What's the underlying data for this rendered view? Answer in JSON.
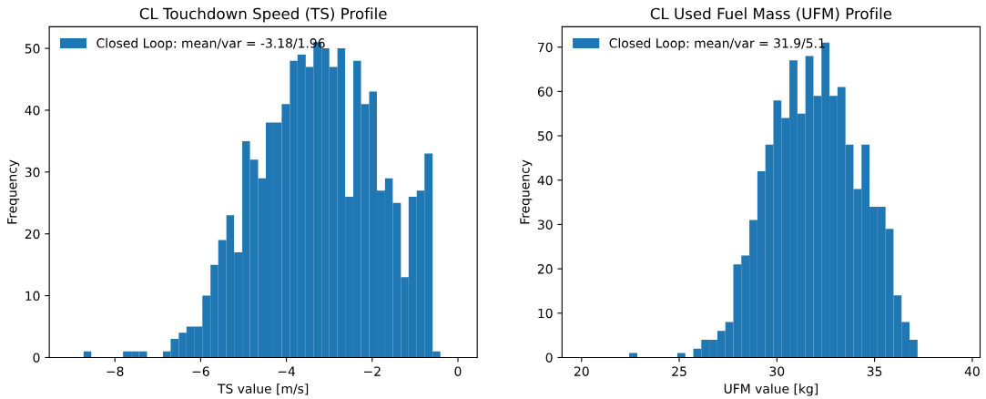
{
  "chart_data": [
    {
      "type": "histogram",
      "title": "CL Touchdown Speed (TS) Profile",
      "xlabel": "TS value [m/s]",
      "ylabel": "Frequency",
      "bins": [
        -8.73,
        -8.55,
        -8.36,
        -8.18,
        -7.99,
        -7.81,
        -7.62,
        -7.44,
        -7.25,
        -7.07,
        -6.88,
        -6.7,
        -6.51,
        -6.33,
        -6.14,
        -5.96,
        -5.77,
        -5.59,
        -5.4,
        -5.22,
        -5.03,
        -4.85,
        -4.66,
        -4.48,
        -4.29,
        -4.11,
        -3.92,
        -3.74,
        -3.55,
        -3.37,
        -3.18,
        -3.0,
        -2.81,
        -2.63,
        -2.44,
        -2.26,
        -2.07,
        -1.89,
        -1.7,
        -1.52,
        -1.33,
        -1.15,
        -0.96,
        -0.78,
        -0.59,
        -0.41
      ],
      "series": [
        {
          "name": "Closed Loop: mean/var = -3.18/1.96",
          "color": "#1f77b4",
          "values": [
            1,
            0,
            0,
            0,
            0,
            1,
            1,
            1,
            0,
            0,
            1,
            3,
            4,
            5,
            5,
            10,
            15,
            19,
            23,
            17,
            35,
            32,
            29,
            38,
            38,
            41,
            48,
            49,
            47,
            51,
            50,
            47,
            50,
            26,
            48,
            41,
            43,
            27,
            29,
            25,
            13,
            26,
            27,
            33,
            1
          ]
        }
      ],
      "xlim": [
        -9.53,
        0.45
      ],
      "xticks": [
        {
          "value": -8,
          "label": "−8"
        },
        {
          "value": -6,
          "label": "−6"
        },
        {
          "value": -4,
          "label": "−4"
        },
        {
          "value": -2,
          "label": "−2"
        },
        0
      ],
      "ylim": [
        0,
        53.5
      ],
      "yticks": [
        0,
        10,
        20,
        30,
        40,
        50
      ],
      "legend": "top left",
      "grid": false
    },
    {
      "type": "histogram",
      "title": "CL Used Fuel Mass (UFM) Profile",
      "xlabel": "UFM value [kg]",
      "ylabel": "Frequency",
      "bins": [
        22.44,
        22.85,
        23.26,
        23.67,
        24.08,
        24.49,
        24.9,
        25.31,
        25.72,
        26.13,
        26.54,
        26.95,
        27.36,
        27.77,
        28.18,
        28.59,
        29.0,
        29.41,
        29.82,
        30.23,
        30.64,
        31.05,
        31.46,
        31.87,
        32.28,
        32.69,
        33.1,
        33.51,
        33.92,
        34.33,
        34.74,
        35.15,
        35.56,
        35.97,
        36.38,
        36.79,
        37.2
      ],
      "series": [
        {
          "name": "Closed Loop: mean/var = 31.9/5.1",
          "color": "#1f77b4",
          "values": [
            1,
            0,
            0,
            0,
            0,
            0,
            1,
            0,
            2,
            4,
            4,
            6,
            8,
            21,
            23,
            31,
            42,
            48,
            58,
            54,
            67,
            55,
            68,
            59,
            71,
            59,
            61,
            48,
            38,
            48,
            34,
            34,
            29,
            14,
            8,
            4
          ]
        }
      ],
      "xlim": [
        19,
        40.4
      ],
      "xticks": [
        20,
        25,
        30,
        35,
        40
      ],
      "ylim": [
        0,
        74.6
      ],
      "yticks": [
        0,
        10,
        20,
        30,
        40,
        50,
        60,
        70
      ],
      "legend": "top left",
      "grid": false
    }
  ]
}
